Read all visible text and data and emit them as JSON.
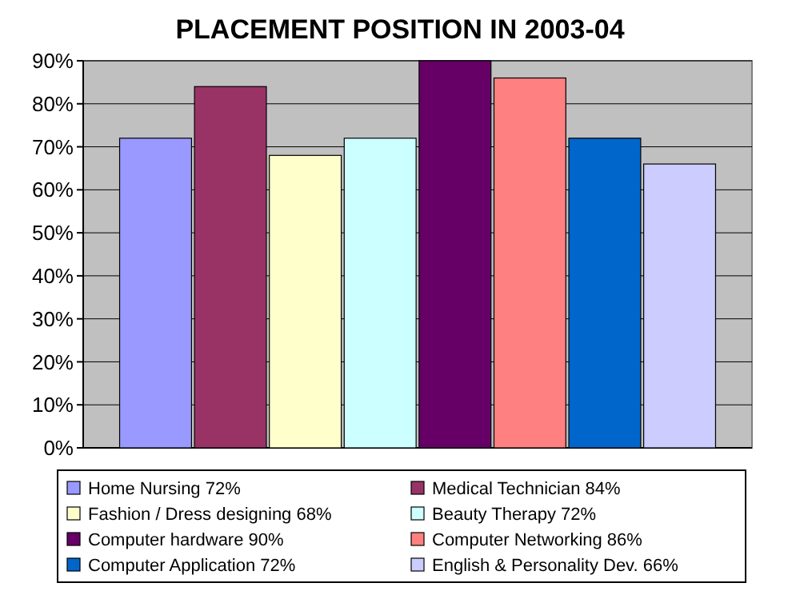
{
  "chart_data": {
    "type": "bar",
    "title": "PLACEMENT POSITION IN 2003-04",
    "categories": [
      null
    ],
    "series": [
      {
        "name": "Home Nursing 72%",
        "color": "#9999ff",
        "values": [
          72
        ]
      },
      {
        "name": "Medical Technician 84%",
        "color": "#993366",
        "values": [
          84
        ]
      },
      {
        "name": "Fashion / Dress designing 68%",
        "color": "#ffffcc",
        "values": [
          68
        ]
      },
      {
        "name": "Beauty Therapy 72%",
        "color": "#ccffff",
        "values": [
          72
        ]
      },
      {
        "name": "Computer hardware 90%",
        "color": "#660066",
        "values": [
          90
        ]
      },
      {
        "name": "Computer Networking 86%",
        "color": "#ff8080",
        "values": [
          86
        ]
      },
      {
        "name": "Computer Application 72%",
        "color": "#0066cc",
        "values": [
          72
        ]
      },
      {
        "name": "English & Personality Dev. 66%",
        "color": "#ccccff",
        "values": [
          66
        ]
      }
    ],
    "ylim": [
      0,
      90
    ],
    "yticks": [
      {
        "value": 0,
        "label": "0%"
      },
      {
        "value": 10,
        "label": "10%"
      },
      {
        "value": 20,
        "label": "20%"
      },
      {
        "value": 30,
        "label": "30%"
      },
      {
        "value": 40,
        "label": "40%"
      },
      {
        "value": 50,
        "label": "50%"
      },
      {
        "value": 60,
        "label": "60%"
      },
      {
        "value": 70,
        "label": "70%"
      },
      {
        "value": 80,
        "label": "80%"
      },
      {
        "value": 90,
        "label": "90%"
      }
    ],
    "grid": "y",
    "legend": "bottom"
  }
}
